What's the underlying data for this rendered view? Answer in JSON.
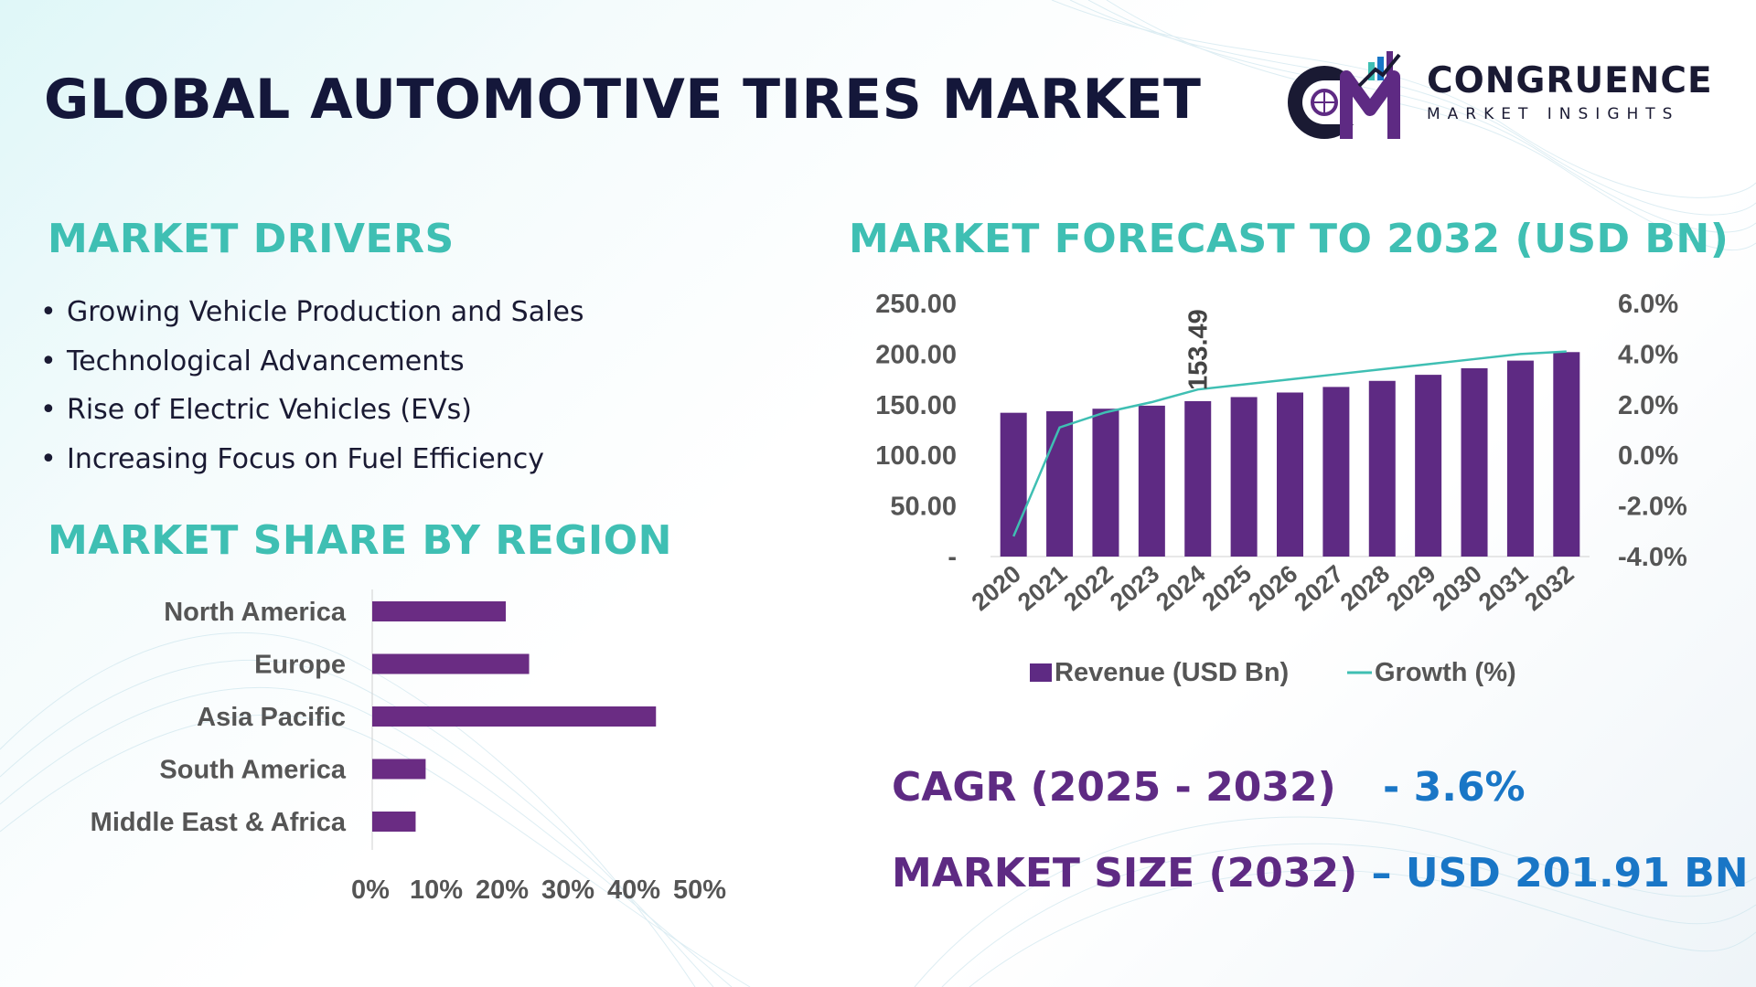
{
  "page": {
    "title": "GLOBAL AUTOMOTIVE TIRES MARKET"
  },
  "logo": {
    "name": "CONGRUENCE",
    "tagline": "MARKET INSIGHTS",
    "colors": {
      "purple": "#5e2a83",
      "teal": "#3fbfb3",
      "blue": "#1976c6",
      "navy": "#1a1a33"
    }
  },
  "drivers": {
    "heading": "MARKET DRIVERS",
    "items": [
      "Growing Vehicle Production and Sales",
      "Technological Advancements",
      "Rise of Electric Vehicles (EVs)",
      "Increasing Focus on Fuel Efficiency"
    ]
  },
  "region": {
    "heading": "MARKET SHARE BY REGION"
  },
  "forecast": {
    "heading": "MARKET FORECAST TO 2032 (USD BN)"
  },
  "stats": {
    "cagr_label": "CAGR (2025 - 2032)",
    "cagr_value": "- 3.6%",
    "size_label": "MARKET SIZE (2032) ",
    "size_value": "– USD 201.91 BN"
  },
  "chart_data": [
    {
      "type": "bar",
      "orientation": "horizontal",
      "categories": [
        "North America",
        "Europe",
        "Asia Pacific",
        "South America",
        "Middle East & Africa"
      ],
      "values": [
        20,
        23.5,
        42.5,
        8,
        6.5
      ],
      "xticks": [
        "0%",
        "10%",
        "20%",
        "30%",
        "40%",
        "50%"
      ],
      "xlim": [
        0,
        50
      ],
      "bar_color": "#6a2c83",
      "grid": false,
      "legend": "none"
    },
    {
      "type": "bar",
      "categories": [
        "2020",
        "2021",
        "2022",
        "2023",
        "2024",
        "2025",
        "2026",
        "2027",
        "2028",
        "2029",
        "2030",
        "2031",
        "2032"
      ],
      "series": [
        {
          "name": "Revenue (USD Bn)",
          "type": "bar",
          "axis": "left",
          "color": "#5e2a83",
          "values": [
            142,
            143.5,
            146,
            149,
            153.49,
            157.5,
            162,
            167.5,
            173.5,
            179.5,
            186,
            193.5,
            201.91
          ]
        },
        {
          "name": "Growth (%)",
          "type": "line",
          "axis": "right",
          "color": "#3fbfb3",
          "values": [
            -3.2,
            1.1,
            1.7,
            2.1,
            2.6,
            2.8,
            3.0,
            3.2,
            3.4,
            3.6,
            3.8,
            4.0,
            4.1
          ]
        }
      ],
      "data_labels": [
        {
          "category": "2024",
          "text": "153.49"
        }
      ],
      "yticks_left": [
        "250.00",
        "200.00",
        "150.00",
        "100.00",
        "50.00",
        "-"
      ],
      "ylim_left": [
        0,
        250
      ],
      "yticks_right": [
        "6.0%",
        "4.0%",
        "2.0%",
        "0.0%",
        "-2.0%",
        "-4.0%"
      ],
      "ylim_right": [
        -4,
        6
      ],
      "grid": false,
      "legend": "bottom"
    }
  ]
}
